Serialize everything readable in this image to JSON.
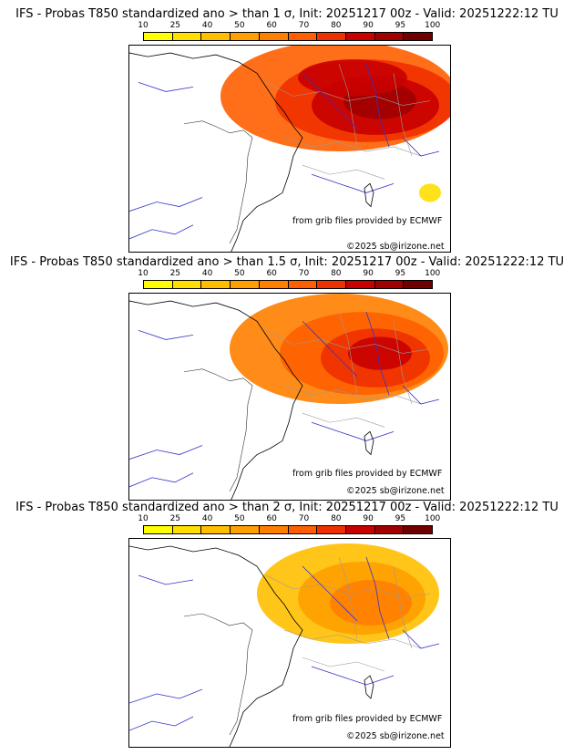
{
  "colorbar": {
    "ticks": [
      "10",
      "25",
      "40",
      "50",
      "60",
      "70",
      "80",
      "90",
      "95",
      "100"
    ],
    "colors": [
      "#ffff00",
      "#ffdf00",
      "#ffbf00",
      "#ff9f00",
      "#ff7f00",
      "#ff5f00",
      "#ef3000",
      "#c80000",
      "#a00000",
      "#700000"
    ]
  },
  "panels": [
    {
      "title": "IFS - Probas T850  standardized ano > than 1 σ, Init: 20251217 00z - Valid: 20251222:12 TU",
      "source": "from grib files provided by ECMWF",
      "copyright": "©2025 sb@irizone.net"
    },
    {
      "title": "IFS - Probas T850  standardized ano > than 1.5 σ, Init: 20251217 00z - Valid: 20251222:12 TU",
      "source": "from grib files provided by ECMWF",
      "copyright": "©2025 sb@irizone.net"
    },
    {
      "title": "IFS - Probas T850  standardized ano > than 2 σ, Init: 20251217 00z - Valid: 20251222:12 TU",
      "source": "from grib files provided by ECMWF",
      "copyright": "©2025 sb@irizone.net"
    }
  ]
}
